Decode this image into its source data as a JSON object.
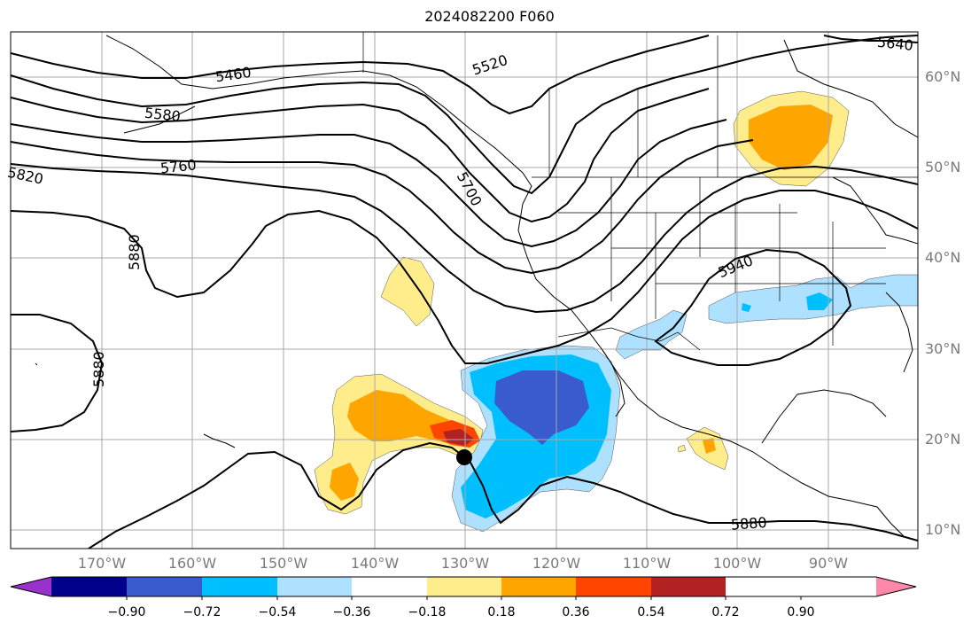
{
  "title": "2024082200 F060",
  "lat_labels": [
    "60°N",
    "50°N",
    "40°N",
    "30°N",
    "20°N",
    "10°N"
  ],
  "lon_labels": [
    "170°W",
    "160°W",
    "150°W",
    "140°W",
    "130°W",
    "120°W",
    "110°W",
    "100°W",
    "90°W"
  ],
  "contour_labels": [
    "5460",
    "5520",
    "5580",
    "5640",
    "5700",
    "5760",
    "5820",
    "5880",
    "5880",
    "5880",
    "5940"
  ],
  "colorbar": {
    "ticks": [
      "−0.90",
      "−0.72",
      "−0.54",
      "−0.36",
      "−0.18",
      "0.18",
      "0.36",
      "0.54",
      "0.72",
      "0.90"
    ],
    "colors": [
      "#9932cc",
      "#00008b",
      "#3a5bcd",
      "#00bfff",
      "#aee0ff",
      "#ffffff",
      "#ffec8b",
      "#ffa500",
      "#ff4500",
      "#b22222",
      "#ff88aa"
    ]
  },
  "colors": {
    "contour": "#000000",
    "grid": "#a8a8a8",
    "coast": "#000000"
  },
  "marker": {
    "label": "storm-center"
  }
}
